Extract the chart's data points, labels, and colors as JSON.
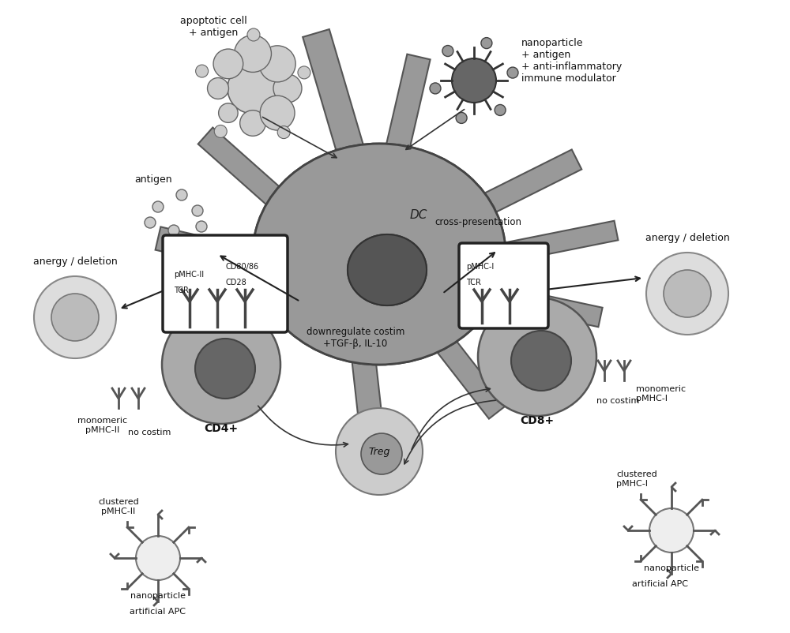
{
  "bg_color": "#ffffff",
  "dc_color": "#999999",
  "dc_nucleus_color": "#555555",
  "cell_light": "#cccccc",
  "cell_lighter": "#e0e0e0",
  "cell_dark": "#888888",
  "cell_darker": "#444444",
  "box_color": "#333333",
  "text_color": "#000000",
  "arrow_color": "#000000",
  "labels": {
    "apoptotic": "apoptotic cell\n+ antigen",
    "nanoparticle_top": "nanoparticle\n+ antigen\n+ anti-inflammatory\nimmune modulator",
    "antigen": "antigen",
    "dc": "DC",
    "anergy_left": "anergy / deletion",
    "anergy_right": "anergy / deletion",
    "cross_presentation": "cross-presentation",
    "pmhc2": "pMHC-II",
    "tcr_left": "TCR",
    "cd8086": "CD80/86",
    "cd28": "CD28",
    "pmhc1": "pMHC-I",
    "tcr_right": "TCR",
    "cd4": "CD4+",
    "cd8": "CD8+",
    "downreg": "downregulate costim\n+TGF-β, IL-10",
    "treg": "Treg",
    "monomeric_pmhc2": "monomeric\npMHC-II",
    "no_costim_left": "no costim",
    "clustered_pmhc2": "clustered\npMHC-II",
    "nanoparticle_left": "nanoparticle",
    "artificial_apc_left": "artificial APC",
    "monomeric_pmhc1": "monomeric\npMHC-I",
    "no_costim_right": "no costim",
    "clustered_pmhc1": "clustered\npMHC-I",
    "nanoparticle_right": "nanoparticle",
    "artificial_apc_right": "artificial APC"
  }
}
